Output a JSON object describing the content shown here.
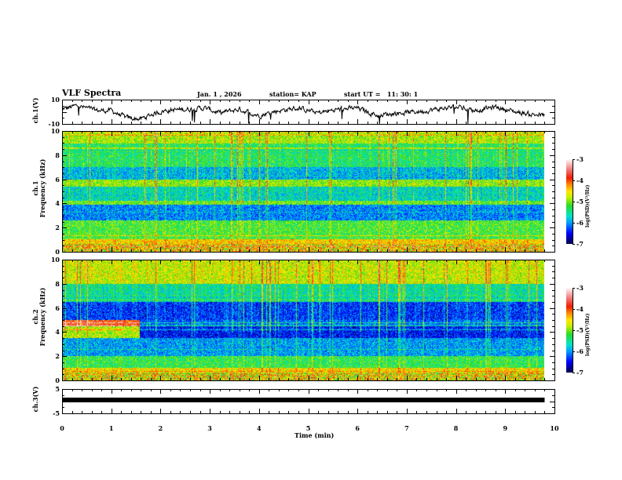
{
  "header": {
    "title": "VLF Spectra",
    "date": "Jan. 1 , 2026",
    "station": "station= KAP",
    "start_time": "start UT =   11: 30: 1"
  },
  "chart_data": [
    {
      "type": "line",
      "name": "ch1-voltage",
      "ylabel": "ch.1(V)",
      "ylim": [
        -10,
        10
      ],
      "yticks": [
        "10",
        "-10"
      ],
      "xlim": [
        0,
        10
      ],
      "data_end_min": 9.8,
      "approx_trace": [
        {
          "t": 0.0,
          "v": 2
        },
        {
          "t": 0.3,
          "v": 5
        },
        {
          "t": 0.7,
          "v": 1
        },
        {
          "t": 1.0,
          "v": 1
        },
        {
          "t": 1.3,
          "v": -5
        },
        {
          "t": 1.6,
          "v": -6
        },
        {
          "t": 1.9,
          "v": -1
        },
        {
          "t": 2.1,
          "v": 1
        },
        {
          "t": 2.5,
          "v": 2
        },
        {
          "t": 2.9,
          "v": 3
        },
        {
          "t": 3.2,
          "v": -1
        },
        {
          "t": 3.6,
          "v": 2
        },
        {
          "t": 4.0,
          "v": -3
        },
        {
          "t": 4.4,
          "v": 1
        },
        {
          "t": 4.8,
          "v": 3
        },
        {
          "t": 5.2,
          "v": -1
        },
        {
          "t": 5.6,
          "v": 2
        },
        {
          "t": 6.0,
          "v": 3
        },
        {
          "t": 6.4,
          "v": -3
        },
        {
          "t": 6.8,
          "v": -1
        },
        {
          "t": 7.2,
          "v": 0
        },
        {
          "t": 7.6,
          "v": 2
        },
        {
          "t": 8.0,
          "v": 4
        },
        {
          "t": 8.4,
          "v": 1
        },
        {
          "t": 8.8,
          "v": 4
        },
        {
          "t": 9.2,
          "v": 0
        },
        {
          "t": 9.5,
          "v": -2
        },
        {
          "t": 9.8,
          "v": -3
        }
      ]
    },
    {
      "type": "heatmap",
      "name": "ch1-spectrogram",
      "ylabel_top": "ch.1",
      "ylabel": "Frequency (kHz)",
      "ylim": [
        0,
        10
      ],
      "yticks": [
        "0",
        "2",
        "4",
        "6",
        "8",
        "10"
      ],
      "xlim": [
        0,
        10
      ],
      "colorbar": {
        "label": "log(PSD)(V²/Hz)",
        "range": [
          -7,
          -3
        ],
        "ticks": [
          "-3",
          "-4",
          "-5",
          "-6",
          "-7"
        ]
      },
      "bands_log_psd": [
        {
          "f_from": 9.0,
          "f_to": 10.0,
          "level": -4.9
        },
        {
          "f_from": 7.0,
          "f_to": 9.0,
          "level": -5.4
        },
        {
          "f_from": 6.0,
          "f_to": 7.0,
          "level": -5.9
        },
        {
          "f_from": 5.4,
          "f_to": 6.0,
          "level": -5.0
        },
        {
          "f_from": 4.2,
          "f_to": 5.4,
          "level": -5.7
        },
        {
          "f_from": 3.9,
          "f_to": 4.2,
          "level": -5.1
        },
        {
          "f_from": 2.6,
          "f_to": 3.9,
          "level": -6.1
        },
        {
          "f_from": 1.0,
          "f_to": 2.6,
          "level": -5.2
        },
        {
          "f_from": 0.0,
          "f_to": 1.0,
          "level": -4.5
        }
      ]
    },
    {
      "type": "heatmap",
      "name": "ch2-spectrogram",
      "ylabel_top": "ch.2",
      "ylabel": "Frequency (kHz)",
      "ylim": [
        0,
        10
      ],
      "yticks": [
        "0",
        "2",
        "4",
        "6",
        "8",
        "10"
      ],
      "xlim": [
        0,
        10
      ],
      "colorbar": {
        "label": "log(PSD)(V²/Hz)",
        "range": [
          -7,
          -3
        ],
        "ticks": [
          "-3",
          "-4",
          "-5",
          "-6",
          "-7"
        ]
      },
      "regime_change_min": 1.55,
      "bands_log_psd": [
        {
          "f_from": 8.0,
          "f_to": 10.0,
          "level": -4.8
        },
        {
          "f_from": 6.5,
          "f_to": 8.0,
          "level": -5.6
        },
        {
          "f_from": 5.0,
          "f_to": 6.5,
          "level": -6.4
        },
        {
          "f_from": 4.5,
          "f_to": 5.0,
          "level": -6.2,
          "early_level": -4.0
        },
        {
          "f_from": 3.5,
          "f_to": 4.5,
          "level": -6.5,
          "early_level": -4.9
        },
        {
          "f_from": 2.0,
          "f_to": 3.5,
          "level": -6.0
        },
        {
          "f_from": 1.0,
          "f_to": 2.0,
          "level": -5.3
        },
        {
          "f_from": 0.0,
          "f_to": 1.0,
          "level": -4.6
        }
      ]
    },
    {
      "type": "line",
      "name": "ch3-voltage",
      "ylabel": "ch.3(V)",
      "ylim": [
        -5,
        5
      ],
      "yticks": [
        "5",
        "-5"
      ],
      "xlim": [
        0,
        10
      ],
      "constant_value": 0.5,
      "data_end_min": 9.8,
      "xlabel": "Time (min)",
      "xticks": [
        "0",
        "1",
        "2",
        "3",
        "4",
        "5",
        "6",
        "7",
        "8",
        "9",
        "10"
      ]
    }
  ]
}
